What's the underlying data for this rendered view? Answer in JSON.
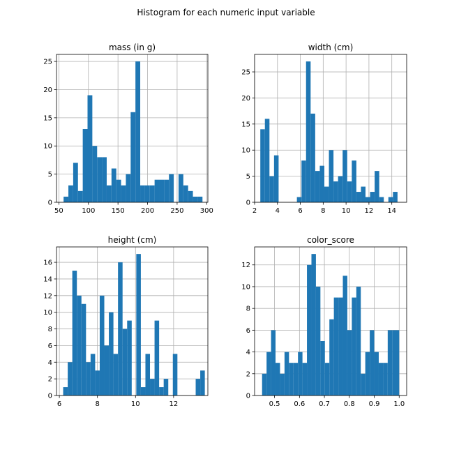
{
  "figure": {
    "title": "Histogram for each numeric input variable"
  },
  "chart_data": [
    {
      "type": "bar",
      "title": "mass (in g)",
      "grid": true,
      "xlim": [
        46,
        302
      ],
      "ylim": [
        0,
        26.25
      ],
      "xticks": [
        50,
        100,
        150,
        200,
        250,
        300
      ],
      "yticks": [
        0,
        5,
        10,
        15,
        20,
        25
      ],
      "bin_edges": [
        58,
        66.1,
        74.2,
        82.3,
        90.4,
        98.5,
        106.6,
        114.7,
        122.8,
        130.9,
        139,
        147.1,
        155.2,
        163.3,
        171.4,
        179.5,
        187.6,
        195.7,
        203.8,
        211.9,
        220,
        228.1,
        236.2,
        244.3,
        252.4,
        260.5,
        268.6,
        276.7,
        284.8,
        292.9
      ],
      "values": [
        1,
        3,
        7,
        2,
        13,
        19,
        10,
        8,
        8,
        3,
        6,
        4,
        3,
        5,
        16,
        25,
        3,
        3,
        3,
        4,
        4,
        4,
        5,
        0,
        5,
        3,
        2,
        1,
        1,
        1
      ]
    },
    {
      "type": "bar",
      "title": "width (cm)",
      "grid": true,
      "xlim": [
        2,
        15.3
      ],
      "ylim": [
        0,
        28.35
      ],
      "xticks": [
        2,
        4,
        6,
        8,
        10,
        12,
        14
      ],
      "yticks": [
        0,
        5,
        10,
        15,
        20,
        25
      ],
      "bin_edges": [
        2.5,
        2.9,
        3.3,
        3.7,
        4.1,
        4.5,
        4.9,
        5.3,
        5.7,
        6.1,
        6.5,
        6.9,
        7.3,
        7.7,
        8.1,
        8.5,
        8.9,
        9.3,
        9.7,
        10.1,
        10.5,
        10.9,
        11.3,
        11.7,
        12.1,
        12.5,
        12.9,
        13.3,
        13.7,
        14.1,
        14.5,
        14.9
      ],
      "values": [
        14,
        16,
        5,
        9,
        0,
        0,
        0,
        0,
        1,
        8,
        27,
        17,
        6,
        7,
        3,
        10,
        4,
        5,
        10,
        4,
        8,
        2,
        3,
        1,
        2,
        6,
        1,
        0,
        1,
        2,
        0
      ]
    },
    {
      "type": "bar",
      "title": "height (cm)",
      "grid": true,
      "xlim": [
        5.85,
        13.8
      ],
      "ylim": [
        0,
        17.85
      ],
      "xticks": [
        6,
        8,
        10,
        12
      ],
      "yticks": [
        0,
        2,
        4,
        6,
        8,
        10,
        12,
        14,
        16
      ],
      "bin_edges": [
        6.2,
        6.44,
        6.68,
        6.92,
        7.16,
        7.4,
        7.64,
        7.88,
        8.12,
        8.36,
        8.6,
        8.84,
        9.08,
        9.32,
        9.56,
        9.8,
        10.04,
        10.28,
        10.52,
        10.76,
        11,
        11.24,
        11.48,
        11.72,
        11.96,
        12.2,
        12.44,
        12.68,
        12.92,
        13.16,
        13.4,
        13.64
      ],
      "values": [
        1,
        4,
        15,
        12,
        11,
        4,
        5,
        3,
        12,
        6,
        10,
        5,
        16,
        8,
        9,
        0,
        17,
        1,
        5,
        2,
        9,
        1,
        2,
        0,
        5,
        0,
        0,
        0,
        0,
        2,
        3
      ]
    },
    {
      "type": "bar",
      "title": "color_score",
      "grid": true,
      "xlim": [
        0.42,
        1.03
      ],
      "ylim": [
        0,
        13.65
      ],
      "xticks": [
        0.5,
        0.6,
        0.7,
        0.8,
        0.9,
        1.0
      ],
      "yticks": [
        0,
        2,
        4,
        6,
        8,
        10,
        12
      ],
      "bin_edges": [
        0.45,
        0.468,
        0.486,
        0.504,
        0.522,
        0.54,
        0.558,
        0.576,
        0.594,
        0.612,
        0.63,
        0.648,
        0.666,
        0.684,
        0.702,
        0.72,
        0.738,
        0.756,
        0.774,
        0.792,
        0.81,
        0.828,
        0.846,
        0.864,
        0.882,
        0.9,
        0.918,
        0.936,
        0.954,
        0.972,
        1.0
      ],
      "values": [
        2,
        4,
        6,
        3,
        2,
        4,
        3,
        3,
        4,
        3,
        12,
        13,
        10,
        5,
        3,
        7,
        9,
        9,
        11,
        6,
        9,
        10,
        2,
        4,
        6,
        4,
        3,
        3,
        6,
        6
      ]
    }
  ]
}
